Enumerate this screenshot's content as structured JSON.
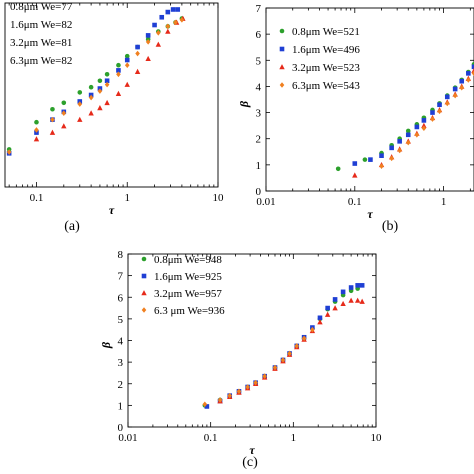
{
  "chart_data": [
    {
      "type": "scatter",
      "panel_label": "(a)",
      "xlabel": "τ",
      "ylabel": "",
      "xscale": "log",
      "xlim": [
        0.045,
        10
      ],
      "ylim": [
        0,
        7.1
      ],
      "xticks": [
        {
          "v": 0.1,
          "label": "0.1"
        },
        {
          "v": 1,
          "label": "1"
        },
        {
          "v": 10,
          "label": "10"
        }
      ],
      "yticks": [],
      "legend": "top-left",
      "series": [
        {
          "name": "0.8μm We=77",
          "marker": "circle",
          "color": "#2ca02c",
          "x": [
            0.05,
            0.1,
            0.15,
            0.2,
            0.3,
            0.4,
            0.5,
            0.6,
            0.8,
            1.0,
            1.3,
            1.7,
            2.2,
            2.8,
            3.4,
            4.0
          ],
          "y": [
            1.45,
            2.5,
            3.0,
            3.25,
            3.65,
            3.85,
            4.1,
            4.35,
            4.7,
            5.05,
            5.4,
            5.7,
            6.0,
            6.2,
            6.35,
            6.5
          ]
        },
        {
          "name": "1.6μm We=82",
          "marker": "square",
          "color": "#1f3fd4",
          "x": [
            0.05,
            0.1,
            0.15,
            0.2,
            0.3,
            0.4,
            0.5,
            0.6,
            0.8,
            1.0,
            1.3,
            1.7,
            2.0,
            2.4,
            2.8,
            3.2,
            3.6
          ],
          "y": [
            1.3,
            2.1,
            2.6,
            2.9,
            3.3,
            3.55,
            3.8,
            4.1,
            4.5,
            4.9,
            5.4,
            5.85,
            6.25,
            6.55,
            6.75,
            6.85,
            6.85
          ]
        },
        {
          "name": "3.2μm We=81",
          "marker": "triangle",
          "color": "#e62a1a",
          "x": [
            0.1,
            0.15,
            0.2,
            0.3,
            0.4,
            0.5,
            0.6,
            0.8,
            1.0,
            1.3,
            1.7,
            2.2,
            2.8,
            3.5,
            4.1
          ],
          "y": [
            1.85,
            2.1,
            2.35,
            2.6,
            2.85,
            3.05,
            3.25,
            3.6,
            3.95,
            4.45,
            4.95,
            5.5,
            6.0,
            6.35,
            6.5
          ]
        },
        {
          "name": "6.3μm We=82",
          "marker": "diamond",
          "color": "#f08020",
          "x": [
            0.05,
            0.1,
            0.15,
            0.2,
            0.3,
            0.4,
            0.5,
            0.6,
            0.8,
            1.0,
            1.3,
            1.7,
            2.2,
            2.8,
            3.4,
            4.0
          ],
          "y": [
            1.35,
            2.2,
            2.6,
            2.85,
            3.2,
            3.45,
            3.7,
            3.95,
            4.35,
            4.7,
            5.15,
            5.6,
            5.95,
            6.2,
            6.35,
            6.45
          ]
        }
      ]
    },
    {
      "type": "scatter",
      "panel_label": "(b)",
      "xlabel": "τ",
      "ylabel": "β",
      "xscale": "log",
      "xlim": [
        0.01,
        2.2
      ],
      "ylim": [
        0,
        7
      ],
      "xticks": [
        {
          "v": 0.01,
          "label": "0.01"
        },
        {
          "v": 0.1,
          "label": "0.1"
        },
        {
          "v": 1,
          "label": "1"
        }
      ],
      "yticks": [
        {
          "v": 0,
          "label": "0"
        },
        {
          "v": 1,
          "label": "1"
        },
        {
          "v": 2,
          "label": "2"
        },
        {
          "v": 3,
          "label": "3"
        },
        {
          "v": 4,
          "label": "4"
        },
        {
          "v": 5,
          "label": "5"
        },
        {
          "v": 6,
          "label": "6"
        },
        {
          "v": 7,
          "label": "7"
        }
      ],
      "legend": "top-left",
      "series": [
        {
          "name": "0.8μm We=521",
          "marker": "circle",
          "color": "#2ca02c",
          "x": [
            0.065,
            0.13,
            0.2,
            0.26,
            0.32,
            0.4,
            0.5,
            0.6,
            0.75,
            0.9,
            1.1,
            1.35,
            1.6,
            1.9,
            2.2
          ],
          "y": [
            0.85,
            1.2,
            1.45,
            1.75,
            2.0,
            2.3,
            2.55,
            2.8,
            3.1,
            3.35,
            3.65,
            3.95,
            4.25,
            4.55,
            4.85
          ]
        },
        {
          "name": "1.6μm We=496",
          "marker": "square",
          "color": "#1f3fd4",
          "x": [
            0.1,
            0.15,
            0.2,
            0.26,
            0.32,
            0.4,
            0.5,
            0.6,
            0.75,
            0.9,
            1.1,
            1.35,
            1.6,
            1.9,
            2.2
          ],
          "y": [
            1.05,
            1.2,
            1.35,
            1.65,
            1.9,
            2.15,
            2.45,
            2.7,
            3.0,
            3.3,
            3.6,
            3.9,
            4.2,
            4.5,
            4.75
          ]
        },
        {
          "name": "3.2μm We=523",
          "marker": "triangle",
          "color": "#e62a1a",
          "x": [
            0.1,
            0.2,
            0.26,
            0.32,
            0.4,
            0.5,
            0.6,
            0.75,
            0.9,
            1.1,
            1.35,
            1.6,
            1.9,
            2.2
          ],
          "y": [
            0.6,
            1.0,
            1.3,
            1.6,
            1.9,
            2.2,
            2.5,
            2.8,
            3.1,
            3.4,
            3.7,
            4.0,
            4.3,
            4.6
          ]
        },
        {
          "name": "6.3μm We=543",
          "marker": "diamond",
          "color": "#f08020",
          "x": [
            0.2,
            0.26,
            0.32,
            0.4,
            0.5,
            0.6,
            0.75,
            0.9,
            1.1,
            1.35,
            1.6,
            1.9,
            2.2
          ],
          "y": [
            0.95,
            1.25,
            1.55,
            1.85,
            2.15,
            2.4,
            2.75,
            3.05,
            3.35,
            3.65,
            3.95,
            4.25,
            4.5
          ]
        }
      ]
    },
    {
      "type": "scatter",
      "panel_label": "(c)",
      "xlabel": "τ",
      "ylabel": "β",
      "xscale": "log",
      "xlim": [
        0.01,
        10
      ],
      "ylim": [
        0,
        8
      ],
      "xticks": [
        {
          "v": 0.01,
          "label": "0.01"
        },
        {
          "v": 0.1,
          "label": "0.1"
        },
        {
          "v": 1,
          "label": "1"
        },
        {
          "v": 10,
          "label": "10"
        }
      ],
      "yticks": [
        {
          "v": 0,
          "label": "0"
        },
        {
          "v": 1,
          "label": "1"
        },
        {
          "v": 2,
          "label": "2"
        },
        {
          "v": 3,
          "label": "3"
        },
        {
          "v": 4,
          "label": "4"
        },
        {
          "v": 5,
          "label": "5"
        },
        {
          "v": 6,
          "label": "6"
        },
        {
          "v": 7,
          "label": "7"
        },
        {
          "v": 8,
          "label": "8"
        }
      ],
      "legend": "top-left",
      "series": [
        {
          "name": "0.8μm We=948",
          "marker": "circle",
          "color": "#2ca02c",
          "x": [
            0.085,
            0.13,
            0.17,
            0.22,
            0.28,
            0.35,
            0.45,
            0.6,
            0.75,
            0.9,
            1.1,
            1.35,
            1.7,
            2.1,
            2.6,
            3.2,
            4.0,
            5.0,
            6.0
          ],
          "y": [
            1.0,
            1.25,
            1.45,
            1.65,
            1.85,
            2.05,
            2.35,
            2.75,
            3.1,
            3.4,
            3.75,
            4.1,
            4.55,
            5.0,
            5.45,
            5.8,
            6.1,
            6.3,
            6.4
          ]
        },
        {
          "name": "1.6μm We=925",
          "marker": "square",
          "color": "#1f3fd4",
          "x": [
            0.09,
            0.13,
            0.17,
            0.22,
            0.28,
            0.35,
            0.45,
            0.6,
            0.75,
            0.9,
            1.1,
            1.35,
            1.7,
            2.1,
            2.6,
            3.2,
            4.0,
            5.0,
            6.0,
            6.8
          ],
          "y": [
            0.95,
            1.2,
            1.45,
            1.65,
            1.85,
            2.05,
            2.35,
            2.75,
            3.1,
            3.4,
            3.75,
            4.15,
            4.6,
            5.05,
            5.5,
            5.9,
            6.25,
            6.45,
            6.55,
            6.55
          ]
        },
        {
          "name": "3.2μm We=957",
          "marker": "triangle",
          "color": "#e62a1a",
          "x": [
            0.13,
            0.17,
            0.22,
            0.28,
            0.35,
            0.45,
            0.6,
            0.75,
            0.9,
            1.1,
            1.35,
            1.7,
            2.1,
            2.6,
            3.2,
            4.0,
            5.0,
            6.0,
            6.8
          ],
          "y": [
            1.2,
            1.4,
            1.6,
            1.8,
            2.0,
            2.3,
            2.7,
            3.05,
            3.35,
            3.7,
            4.05,
            4.45,
            4.85,
            5.2,
            5.5,
            5.7,
            5.85,
            5.85,
            5.8
          ]
        },
        {
          "name": "6.3 μm We=936",
          "marker": "diamond",
          "color": "#f08020",
          "x": [
            0.085,
            0.13,
            0.17,
            0.22,
            0.28,
            0.35,
            0.45,
            0.6,
            0.75,
            0.9,
            1.1,
            1.35,
            1.7
          ],
          "y": [
            1.05,
            1.25,
            1.45,
            1.65,
            1.85,
            2.05,
            2.35,
            2.75,
            3.1,
            3.4,
            3.75,
            4.1,
            4.5
          ]
        }
      ]
    }
  ]
}
